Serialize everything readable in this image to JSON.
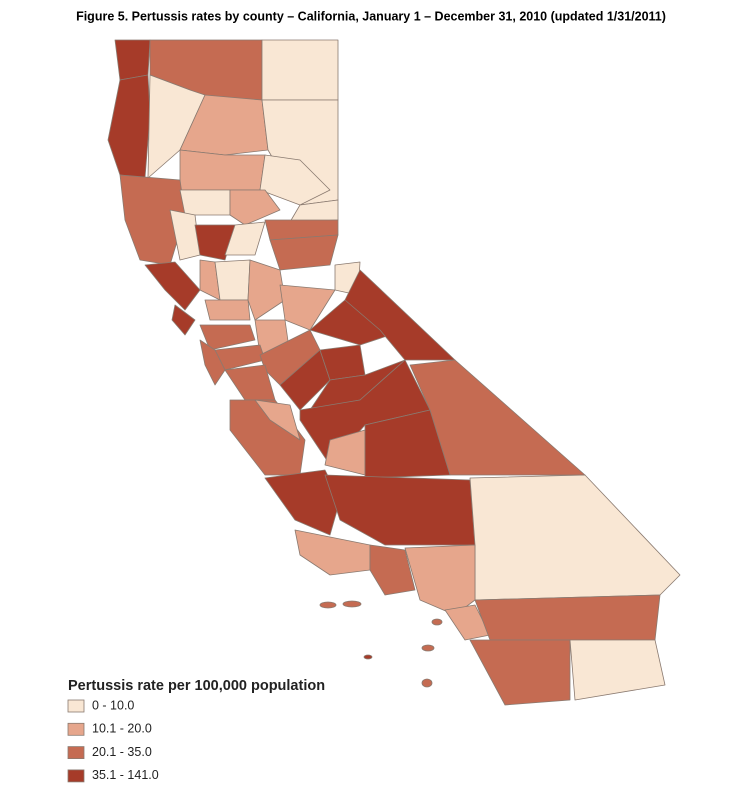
{
  "title": "Figure 5. Pertussis rates by county – California, January 1 – December 31, 2010 (updated 1/31/2011)",
  "legend": {
    "title": "Pertussis rate per 100,000 population",
    "items": [
      {
        "label": "0 - 10.0",
        "color": "#f9e7d4"
      },
      {
        "label": "10.1 - 20.0",
        "color": "#e6a68c"
      },
      {
        "label": "20.1 - 35.0",
        "color": "#c56b52"
      },
      {
        "label": "35.1 - 141.0",
        "color": "#a63b29"
      }
    ]
  }
}
